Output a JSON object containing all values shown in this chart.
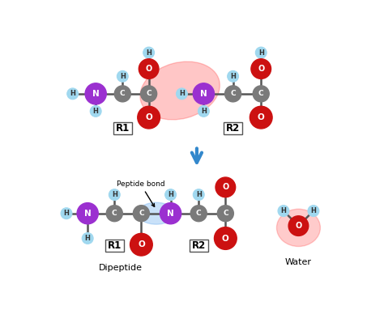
{
  "bg_color": "#ffffff",
  "atom_colors": {
    "H": "#a0d8ef",
    "C": "#7a7a7a",
    "N": "#9b30d0",
    "O": "#cc1111"
  },
  "labels": {
    "R1_top": "R1",
    "R2_top": "R2",
    "R1_bottom": "R1",
    "R2_bottom": "R2",
    "dipeptide_label": "Dipeptide",
    "water_label": "Water",
    "peptide_bond_label": "Peptide bond"
  }
}
